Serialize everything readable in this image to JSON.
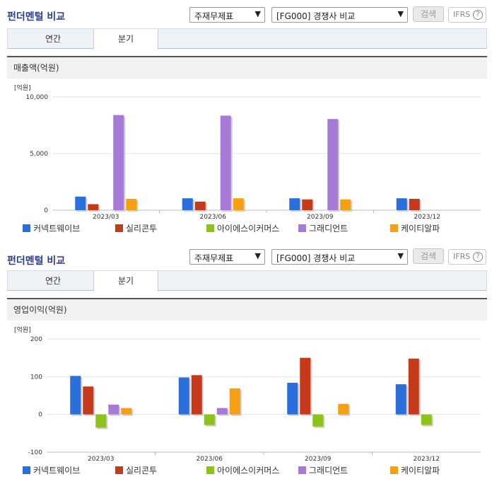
{
  "sections": [
    {
      "title": "펀더멘털 비교",
      "select1": "주재무제표",
      "select2": "[FG000] 경쟁사 비교",
      "search_label": "검색",
      "ifrs_label": "IFRS",
      "tabs": [
        "연간",
        "분기"
      ],
      "active_tab": 1,
      "panel_title": "매출액(억원)",
      "unit_label": "[억원]"
    },
    {
      "title": "펀더멘털 비교",
      "select1": "주재무제표",
      "select2": "[FG000] 경쟁사 비교",
      "search_label": "검색",
      "ifrs_label": "IFRS",
      "tabs": [
        "연간",
        "분기"
      ],
      "active_tab": 1,
      "panel_title": "영업이익(억원)",
      "unit_label": "[억원]"
    }
  ],
  "colors": {
    "title": "#2a3f8a",
    "series": [
      "#2a6fdb",
      "#c63a1c",
      "#8cc21a",
      "#a77ad6",
      "#f59f12"
    ]
  },
  "icons": {
    "dropdown": "chevron-down-icon",
    "help": "question-circle-icon"
  },
  "chart_data": [
    {
      "type": "bar",
      "categories": [
        "2023/03",
        "2023/06",
        "2023/09",
        "2023/12"
      ],
      "series": [
        {
          "name": "커넥트웨이브",
          "values": [
            1200,
            1050,
            1050,
            1050
          ]
        },
        {
          "name": "실리콘투",
          "values": [
            530,
            750,
            950,
            1000
          ]
        },
        {
          "name": "아이에스이커머스",
          "values": [
            null,
            null,
            null,
            null
          ]
        },
        {
          "name": "그래디언트",
          "values": [
            8400,
            8350,
            8050,
            null
          ]
        },
        {
          "name": "케이티알파",
          "values": [
            1000,
            1050,
            950,
            null
          ]
        }
      ],
      "ylim": [
        0,
        10000
      ],
      "yticks": [
        "10,000",
        "5,000",
        "0"
      ],
      "ytick_values": [
        10000,
        5000,
        0
      ]
    },
    {
      "type": "bar",
      "categories": [
        "2023/03",
        "2023/06",
        "2023/09",
        "2023/12"
      ],
      "series": [
        {
          "name": "커넥트웨이브",
          "values": [
            102,
            98,
            84,
            80
          ]
        },
        {
          "name": "실리콘투",
          "values": [
            74,
            104,
            150,
            148
          ]
        },
        {
          "name": "아이에스이커머스",
          "values": [
            -35,
            -28,
            -32,
            -28
          ]
        },
        {
          "name": "그래디언트",
          "values": [
            26,
            17,
            null,
            null
          ]
        },
        {
          "name": "케이티알파",
          "values": [
            17,
            69,
            28,
            null
          ]
        }
      ],
      "ylim": [
        -100,
        200
      ],
      "yticks": [
        "200",
        "100",
        "0",
        "-100"
      ],
      "ytick_values": [
        200,
        100,
        0,
        -100
      ]
    }
  ]
}
